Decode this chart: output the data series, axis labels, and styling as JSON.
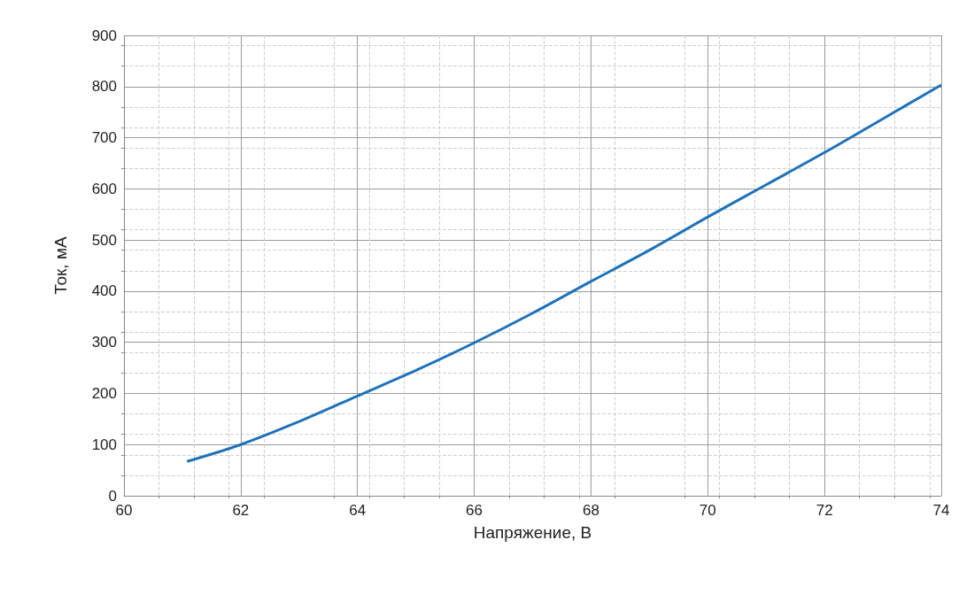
{
  "chart_data": {
    "type": "line",
    "xlabel": "Напряжение, В",
    "ylabel": "Ток, мА",
    "xlim": [
      60,
      74
    ],
    "xticks": [
      60,
      62,
      64,
      66,
      68,
      70,
      72,
      74
    ],
    "ylim": [
      0,
      900
    ],
    "yticks": [
      0,
      100,
      200,
      300,
      400,
      500,
      600,
      700,
      800,
      900
    ],
    "grid": true,
    "marker": "none",
    "line_style": "solid",
    "series": [
      {
        "color": "#1f72b8",
        "x": [
          61.08,
          62,
          63,
          64,
          65,
          66,
          67,
          68,
          69,
          70,
          71,
          72,
          73,
          74
        ],
        "values": [
          67,
          100,
          145,
          195,
          245,
          299,
          357,
          419,
          480,
          545,
          608,
          671,
          737,
          803
        ]
      }
    ]
  }
}
